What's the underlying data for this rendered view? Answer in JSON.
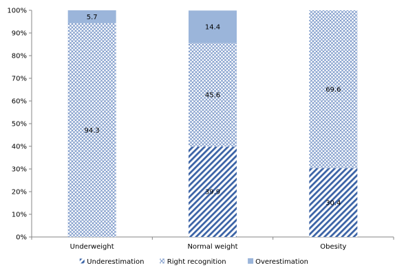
{
  "chart_data": {
    "type": "bar",
    "stacked": true,
    "categories": [
      "Underweight",
      "Normal weight",
      "Obesity"
    ],
    "series": [
      {
        "name": "Underestimation",
        "values": [
          0,
          39.9,
          30.4
        ],
        "pattern": "diagonal-stripes",
        "color": "#3b63a6"
      },
      {
        "name": "Right recognition",
        "values": [
          94.3,
          45.6,
          69.6
        ],
        "pattern": "crosshatch",
        "color": "#6f8fc4"
      },
      {
        "name": "Overestimation",
        "values": [
          5.7,
          14.4,
          0
        ],
        "pattern": "solid",
        "color": "#9bb5da"
      }
    ],
    "data_labels": [
      {
        "category": 0,
        "series": 1,
        "text": "94.3"
      },
      {
        "category": 0,
        "series": 2,
        "text": "5.7"
      },
      {
        "category": 1,
        "series": 0,
        "text": "39.9"
      },
      {
        "category": 1,
        "series": 1,
        "text": "45.6"
      },
      {
        "category": 1,
        "series": 2,
        "text": "14.4"
      },
      {
        "category": 2,
        "series": 0,
        "text": "30.4"
      },
      {
        "category": 2,
        "series": 1,
        "text": "69.6"
      }
    ],
    "y_ticks": [
      "0%",
      "10%",
      "20%",
      "30%",
      "40%",
      "50%",
      "60%",
      "70%",
      "80%",
      "90%",
      "100%"
    ],
    "ylim": [
      0,
      100
    ],
    "grid": false,
    "legend_position": "bottom",
    "title": "",
    "xlabel": "",
    "ylabel": ""
  }
}
